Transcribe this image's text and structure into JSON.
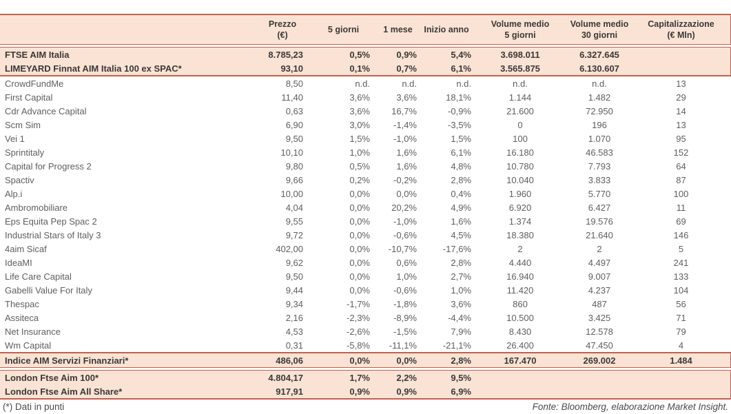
{
  "theme": {
    "accent": "#C2604F",
    "band_background": "#FAE3D4",
    "bold_text_color": "#3A3836",
    "body_text_color": "#5E5E5E"
  },
  "header": {
    "name": "",
    "prezzo_line1": "Prezzo",
    "prezzo_line2": "(€)",
    "d5": "5 giorni",
    "m1": "1 mese",
    "ytd": "Inizio anno",
    "vol5_line1": "Volume medio",
    "vol5_line2": "5 giorni",
    "vol30_line1": "Volume medio",
    "vol30_line2": "30 giorni",
    "cap_line1": "Capitalizzazione",
    "cap_line2": "(€ Mln)"
  },
  "index_rows": [
    {
      "name": "FTSE AIM Italia",
      "prezzo": "8.785,23",
      "d5": "0,5%",
      "m1": "0,9%",
      "ytd": "5,4%",
      "vol5": "3.698.011",
      "vol30": "6.327.645",
      "cap": ""
    },
    {
      "name": "LIMEYARD Finnat AIM Italia 100 ex SPAC*",
      "prezzo": "93,10",
      "d5": "0,1%",
      "m1": "0,7%",
      "ytd": "6,1%",
      "vol5": "3.565.875",
      "vol30": "6.130.607",
      "cap": ""
    }
  ],
  "company_rows": [
    {
      "name": "CrowdFundMe",
      "prezzo": "8,50",
      "d5": "n.d.",
      "m1": "n.d.",
      "ytd": "n.d.",
      "vol5": "n.d.",
      "vol30": "n.d.",
      "cap": "13"
    },
    {
      "name": "First Capital",
      "prezzo": "11,40",
      "d5": "3,6%",
      "m1": "3,6%",
      "ytd": "18,1%",
      "vol5": "1.144",
      "vol30": "1.482",
      "cap": "29"
    },
    {
      "name": "Cdr Advance Capital",
      "prezzo": "0,63",
      "d5": "3,6%",
      "m1": "16,7%",
      "ytd": "-0,9%",
      "vol5": "21.600",
      "vol30": "72.950",
      "cap": "14"
    },
    {
      "name": "Scm Sim",
      "prezzo": "6,90",
      "d5": "3,0%",
      "m1": "-1,4%",
      "ytd": "-3,5%",
      "vol5": "0",
      "vol30": "196",
      "cap": "13"
    },
    {
      "name": "Vei 1",
      "prezzo": "9,50",
      "d5": "1,5%",
      "m1": "-1,0%",
      "ytd": "1,5%",
      "vol5": "100",
      "vol30": "1.070",
      "cap": "95"
    },
    {
      "name": "Sprintitaly",
      "prezzo": "10,10",
      "d5": "1,0%",
      "m1": "1,6%",
      "ytd": "6,1%",
      "vol5": "16.180",
      "vol30": "46.583",
      "cap": "152"
    },
    {
      "name": "Capital for Progress 2",
      "prezzo": "9,80",
      "d5": "0,5%",
      "m1": "1,6%",
      "ytd": "4,8%",
      "vol5": "10.780",
      "vol30": "7.793",
      "cap": "64"
    },
    {
      "name": "Spactiv",
      "prezzo": "9,66",
      "d5": "0,2%",
      "m1": "-0,2%",
      "ytd": "2,8%",
      "vol5": "10.040",
      "vol30": "3.833",
      "cap": "87"
    },
    {
      "name": "Alp.i",
      "prezzo": "10,00",
      "d5": "0,0%",
      "m1": "0,0%",
      "ytd": "0,4%",
      "vol5": "1.960",
      "vol30": "5.770",
      "cap": "100"
    },
    {
      "name": "Ambromobiliare",
      "prezzo": "4,04",
      "d5": "0,0%",
      "m1": "20,2%",
      "ytd": "4,9%",
      "vol5": "6.920",
      "vol30": "6.427",
      "cap": "11"
    },
    {
      "name": "Eps Equita Pep Spac 2",
      "prezzo": "9,55",
      "d5": "0,0%",
      "m1": "-1,0%",
      "ytd": "1,6%",
      "vol5": "1.374",
      "vol30": "19.576",
      "cap": "69"
    },
    {
      "name": "Industrial Stars of Italy 3",
      "prezzo": "9,72",
      "d5": "0,0%",
      "m1": "-0,6%",
      "ytd": "4,5%",
      "vol5": "18.380",
      "vol30": "21.640",
      "cap": "146"
    },
    {
      "name": "4aim Sicaf",
      "prezzo": "402,00",
      "d5": "0,0%",
      "m1": "-10,7%",
      "ytd": "-17,6%",
      "vol5": "2",
      "vol30": "2",
      "cap": "5"
    },
    {
      "name": "IdeaMI",
      "prezzo": "9,62",
      "d5": "0,0%",
      "m1": "0,6%",
      "ytd": "2,8%",
      "vol5": "4.440",
      "vol30": "4.497",
      "cap": "241"
    },
    {
      "name": "Life Care Capital",
      "prezzo": "9,50",
      "d5": "0,0%",
      "m1": "1,0%",
      "ytd": "2,7%",
      "vol5": "16.940",
      "vol30": "9.007",
      "cap": "133"
    },
    {
      "name": "Gabelli Value For Italy",
      "prezzo": "9,44",
      "d5": "0,0%",
      "m1": "-0,6%",
      "ytd": "1,0%",
      "vol5": "11.420",
      "vol30": "4.237",
      "cap": "104"
    },
    {
      "name": "Thespac",
      "prezzo": "9,34",
      "d5": "-1,7%",
      "m1": "-1,8%",
      "ytd": "3,6%",
      "vol5": "860",
      "vol30": "487",
      "cap": "56"
    },
    {
      "name": "Assiteca",
      "prezzo": "2,16",
      "d5": "-2,3%",
      "m1": "-8,9%",
      "ytd": "-4,4%",
      "vol5": "10.500",
      "vol30": "3.425",
      "cap": "71"
    },
    {
      "name": "Net Insurance",
      "prezzo": "4,53",
      "d5": "-2,6%",
      "m1": "-1,5%",
      "ytd": "7,9%",
      "vol5": "8.430",
      "vol30": "12.578",
      "cap": "79"
    },
    {
      "name": "Wm Capital",
      "prezzo": "0,31",
      "d5": "-5,8%",
      "m1": "-11,1%",
      "ytd": "-21,1%",
      "vol5": "26.400",
      "vol30": "47.450",
      "cap": "4"
    }
  ],
  "sector_rows": [
    {
      "name": "Indice AIM Servizi Finanziari*",
      "prezzo": "486,06",
      "d5": "0,0%",
      "m1": "0,0%",
      "ytd": "2,8%",
      "vol5": "167.470",
      "vol30": "269.002",
      "cap": "1.484"
    }
  ],
  "london_rows": [
    {
      "name": "London Ftse Aim 100*",
      "prezzo": "4.804,17",
      "d5": "1,7%",
      "m1": "2,2%",
      "ytd": "9,5%",
      "vol5": "",
      "vol30": "",
      "cap": ""
    },
    {
      "name": "London Ftse Aim All Share*",
      "prezzo": "917,91",
      "d5": "0,9%",
      "m1": "0,9%",
      "ytd": "6,9%",
      "vol5": "",
      "vol30": "",
      "cap": ""
    }
  ],
  "footer": {
    "note": "(*) Dati in punti",
    "source": "Fonte: Bloomberg, elaborazione Market Insight."
  }
}
